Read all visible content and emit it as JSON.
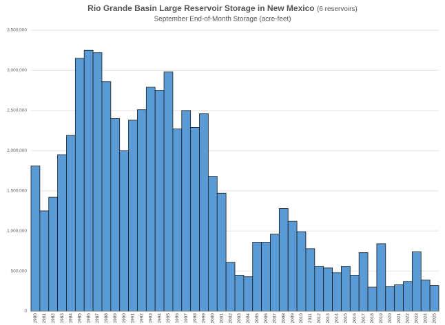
{
  "chart_data": {
    "type": "bar",
    "title": "Rio Grande Basin Large Reservoir Storage in New Mexico",
    "title_note": "(6 reservoirs)",
    "subtitle": "September End-of-Month Storage (acre-feet)",
    "categories": [
      "1980",
      "1981",
      "1982",
      "1983",
      "1984",
      "1985",
      "1986",
      "1987",
      "1988",
      "1989",
      "1990",
      "1991",
      "1992",
      "1993",
      "1994",
      "1995",
      "1996",
      "1997",
      "1998",
      "1999",
      "2000",
      "2001",
      "2002",
      "2003",
      "2004",
      "2005",
      "2006",
      "2007",
      "2008",
      "2009",
      "2010",
      "2011",
      "2012",
      "2013",
      "2014",
      "2015",
      "2016",
      "2017",
      "2018",
      "2019",
      "2020",
      "2021",
      "2022",
      "2023",
      "2024",
      "2025"
    ],
    "values": [
      1810000,
      1250000,
      1420000,
      1950000,
      2190000,
      3150000,
      3250000,
      3220000,
      2860000,
      2400000,
      2000000,
      2380000,
      2510000,
      2790000,
      2750000,
      2980000,
      2270000,
      2500000,
      2290000,
      2460000,
      1680000,
      1470000,
      610000,
      450000,
      430000,
      860000,
      860000,
      960000,
      1280000,
      1120000,
      990000,
      780000,
      560000,
      540000,
      480000,
      560000,
      450000,
      730000,
      300000,
      840000,
      310000,
      330000,
      370000,
      740000,
      390000,
      320000
    ],
    "color": "#5b9bd5",
    "ylim": [
      0,
      3500000
    ],
    "yticks": [
      0,
      {
        "value": 500000,
        "label": "500,000"
      },
      {
        "value": 1000000,
        "label": "1,000,000"
      },
      {
        "value": 1500000,
        "label": "1,500,000"
      },
      {
        "value": 2000000,
        "label": "2,000,000"
      },
      {
        "value": 2500000,
        "label": "2,500,000"
      },
      {
        "value": 3000000,
        "label": "3,000,000"
      },
      {
        "value": 3500000,
        "label": "3,500,000"
      }
    ],
    "grid": true
  }
}
